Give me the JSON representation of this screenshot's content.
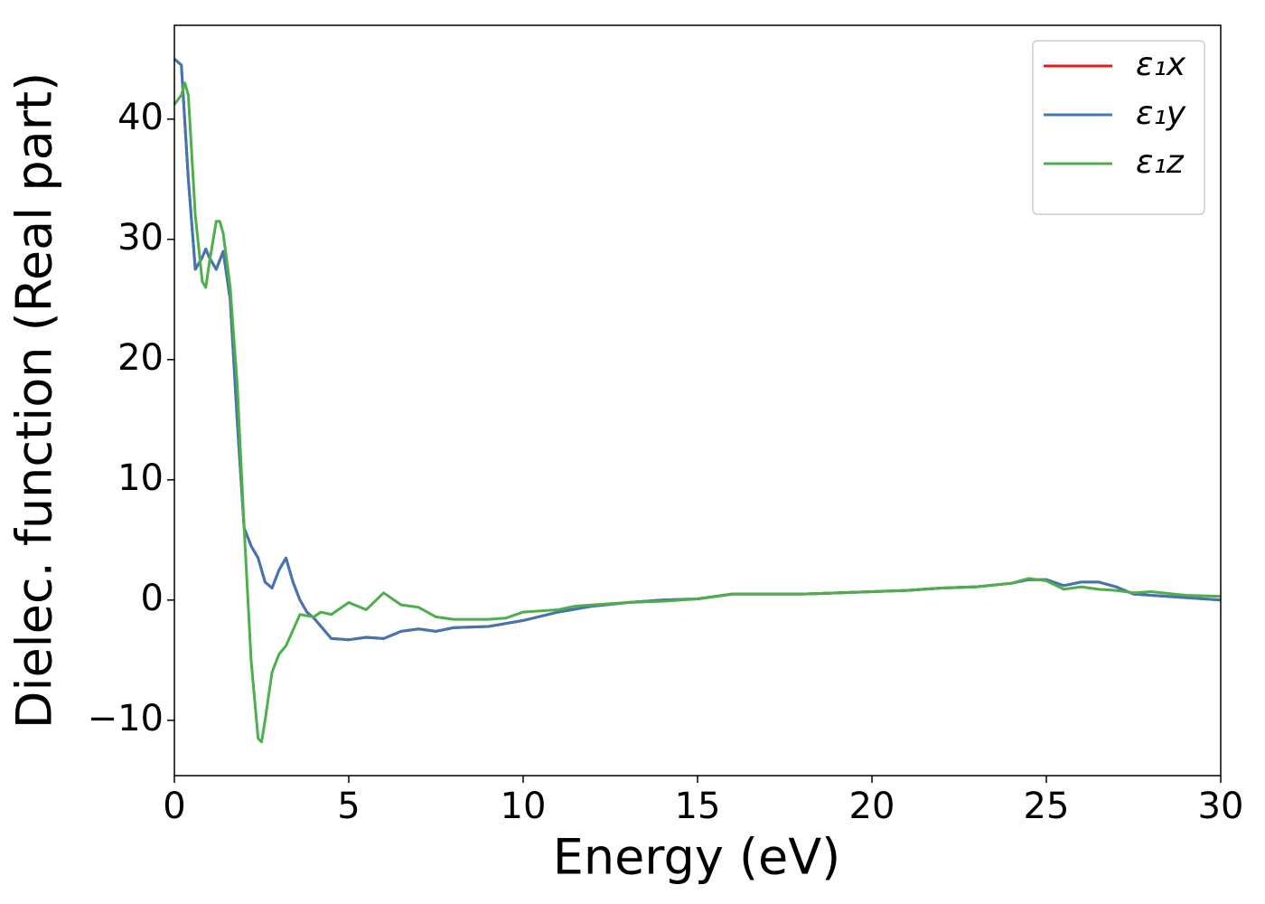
{
  "chart_data": {
    "type": "line",
    "xlabel": "Energy (eV)",
    "ylabel": "Dielec. function (Real part)",
    "xlim": [
      0,
      30
    ],
    "xticks": [
      0,
      5,
      10,
      15,
      20,
      25,
      30
    ],
    "ylim": [
      -14.6,
      47.8
    ],
    "yticks": [
      {
        "value": -10,
        "label": "−10"
      },
      0,
      10,
      20,
      30,
      40
    ],
    "legend": "upper right",
    "grid": false,
    "series": [
      {
        "name": "ε₁x",
        "color": "#e41a1c",
        "x": [
          0,
          0.2,
          0.4,
          0.6,
          0.8,
          0.9,
          1.0,
          1.2,
          1.4,
          1.6,
          1.8,
          2.0,
          2.2,
          2.4,
          2.6,
          2.8,
          3.0,
          3.2,
          3.4,
          3.6,
          3.8,
          4.0,
          4.5,
          5,
          5.5,
          6,
          6.5,
          7,
          7.5,
          8,
          9,
          10,
          11,
          12,
          13,
          14,
          15,
          16,
          17,
          18,
          19,
          20,
          21,
          22,
          23,
          24,
          24.5,
          25,
          25.5,
          26,
          26.5,
          27,
          27.5,
          28,
          29,
          30
        ],
        "values": [
          45.0,
          44.5,
          35,
          27.5,
          28.5,
          29.2,
          28.5,
          27.5,
          29,
          25,
          15,
          6,
          4.5,
          3.5,
          1.5,
          1.0,
          2.5,
          3.5,
          1.5,
          0,
          -1.0,
          -1.5,
          -3.2,
          -3.3,
          -3.1,
          -3.2,
          -2.6,
          -2.4,
          -2.6,
          -2.3,
          -2.2,
          -1.7,
          -1.0,
          -0.5,
          -0.2,
          0.0,
          0.1,
          0.5,
          0.5,
          0.5,
          0.6,
          0.7,
          0.8,
          1.0,
          1.1,
          1.4,
          1.7,
          1.7,
          1.2,
          1.5,
          1.5,
          1.1,
          0.5,
          0.4,
          0.2,
          0.0
        ]
      },
      {
        "name": "ε₁y",
        "color": "#3f77b4",
        "x": [
          0,
          0.2,
          0.4,
          0.6,
          0.8,
          0.9,
          1.0,
          1.2,
          1.4,
          1.6,
          1.8,
          2.0,
          2.2,
          2.4,
          2.6,
          2.8,
          3.0,
          3.2,
          3.4,
          3.6,
          3.8,
          4.0,
          4.5,
          5,
          5.5,
          6,
          6.5,
          7,
          7.5,
          8,
          9,
          10,
          11,
          12,
          13,
          14,
          15,
          16,
          17,
          18,
          19,
          20,
          21,
          22,
          23,
          24,
          24.5,
          25,
          25.5,
          26,
          26.5,
          27,
          27.5,
          28,
          29,
          30
        ],
        "values": [
          45.0,
          44.5,
          35,
          27.5,
          28.5,
          29.2,
          28.5,
          27.5,
          29,
          25,
          15,
          6,
          4.5,
          3.5,
          1.5,
          1.0,
          2.5,
          3.5,
          1.5,
          0,
          -1.0,
          -1.5,
          -3.2,
          -3.3,
          -3.1,
          -3.2,
          -2.6,
          -2.4,
          -2.6,
          -2.3,
          -2.2,
          -1.7,
          -1.0,
          -0.5,
          -0.2,
          0.0,
          0.1,
          0.5,
          0.5,
          0.5,
          0.6,
          0.7,
          0.8,
          1.0,
          1.1,
          1.4,
          1.7,
          1.7,
          1.2,
          1.5,
          1.5,
          1.1,
          0.5,
          0.4,
          0.2,
          0.0
        ]
      },
      {
        "name": "ε₁z",
        "color": "#4daf4a",
        "x": [
          0,
          0.2,
          0.3,
          0.4,
          0.6,
          0.8,
          0.9,
          1.0,
          1.2,
          1.3,
          1.4,
          1.6,
          1.8,
          2.0,
          2.2,
          2.4,
          2.5,
          2.6,
          2.8,
          3.0,
          3.2,
          3.4,
          3.6,
          3.8,
          4.0,
          4.2,
          4.5,
          5,
          5.5,
          6,
          6.5,
          7,
          7.5,
          8,
          9,
          9.5,
          10,
          11,
          11.5,
          12,
          13,
          14,
          15,
          16,
          17,
          18,
          19,
          20,
          21,
          22,
          23,
          24,
          24.5,
          25,
          25.5,
          26,
          26.5,
          27,
          27.5,
          28,
          29,
          30
        ],
        "values": [
          41.2,
          42,
          43,
          42,
          32,
          26.5,
          26,
          28,
          31.5,
          31.5,
          30.5,
          26,
          18,
          6,
          -5,
          -11.5,
          -11.8,
          -10,
          -6,
          -4.5,
          -3.8,
          -2.5,
          -1.2,
          -1.3,
          -1.4,
          -1.0,
          -1.2,
          -0.2,
          -0.8,
          0.6,
          -0.4,
          -0.6,
          -1.4,
          -1.6,
          -1.6,
          -1.5,
          -1.0,
          -0.8,
          -0.5,
          -0.4,
          -0.2,
          -0.1,
          0.1,
          0.5,
          0.5,
          0.5,
          0.6,
          0.7,
          0.8,
          1.0,
          1.1,
          1.4,
          1.8,
          1.6,
          0.9,
          1.1,
          0.9,
          0.8,
          0.6,
          0.7,
          0.4,
          0.3
        ]
      }
    ]
  }
}
